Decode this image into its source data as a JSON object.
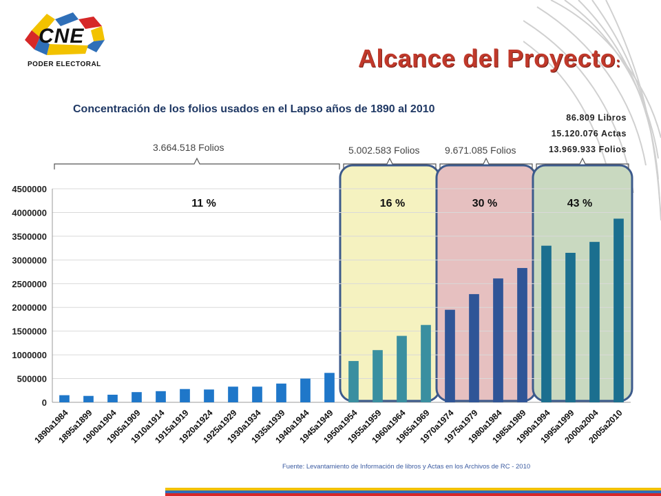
{
  "logo": {
    "text": "CNE",
    "subtext": "PODER ELECTORAL"
  },
  "slide_title": {
    "text": "Alcance del Proyecto",
    "colon": ":"
  },
  "annotations": {
    "period1_folios": "3.664.518 Folios",
    "period2_folios": "5.002.583 Folios",
    "period3_folios": "9.671.085 Folios",
    "period4_libros": "86.809 Libros",
    "period4_actas": "15.120.076 Actas",
    "period4_folios": "13.969.933 Folios",
    "pct1": "11 %",
    "pct2": "16 %",
    "pct3": "30 %",
    "pct4": "43 %"
  },
  "footer": "Fuente: Levantamiento de Información de libros y Actas en los Archivos de RC - 2010",
  "colors": {
    "title_red": "#c0392b",
    "bar_blue": "#1f77c9",
    "bar_teal": "#3a8fa0",
    "bar_navy": "#2f5597",
    "bar_darkteal": "#1b6f8f",
    "panel_yellow": "#f5f2c0",
    "panel_pink": "#e6c0c0",
    "panel_green": "#c9d9c0",
    "panel_border": "#3c5a8c"
  },
  "chart_data": {
    "type": "bar",
    "title": "Concentración de los folios usados en el Lapso años de 1890 al 2010",
    "xlabel": "",
    "ylabel": "",
    "ylim": [
      0,
      4500000
    ],
    "yticks": [
      "0",
      "500000",
      "1000000",
      "1500000",
      "2000000",
      "2500000",
      "3000000",
      "3500000",
      "4000000",
      "4500000"
    ],
    "categories": [
      "1890a1984",
      "1895a1899",
      "1900a1904",
      "1905a1909",
      "1910a1914",
      "1915a1919",
      "1920a1924",
      "1925a1929",
      "1930a1934",
      "1935a1939",
      "1940a1944",
      "1945a1949",
      "1950a1954",
      "1955a1959",
      "1960a1964",
      "1965a1969",
      "1970a1974",
      "1975a1979",
      "1980a1984",
      "1985a1989",
      "1990a1994",
      "1995a1999",
      "2000a2004",
      "2005a2010"
    ],
    "values": [
      150000,
      135000,
      160000,
      215000,
      235000,
      280000,
      270000,
      330000,
      330000,
      395000,
      500000,
      620000,
      870000,
      1100000,
      1400000,
      1630000,
      1950000,
      2280000,
      2610000,
      2830000,
      3300000,
      3150000,
      3380000,
      3870000
    ],
    "grid": true,
    "legend": "none"
  }
}
